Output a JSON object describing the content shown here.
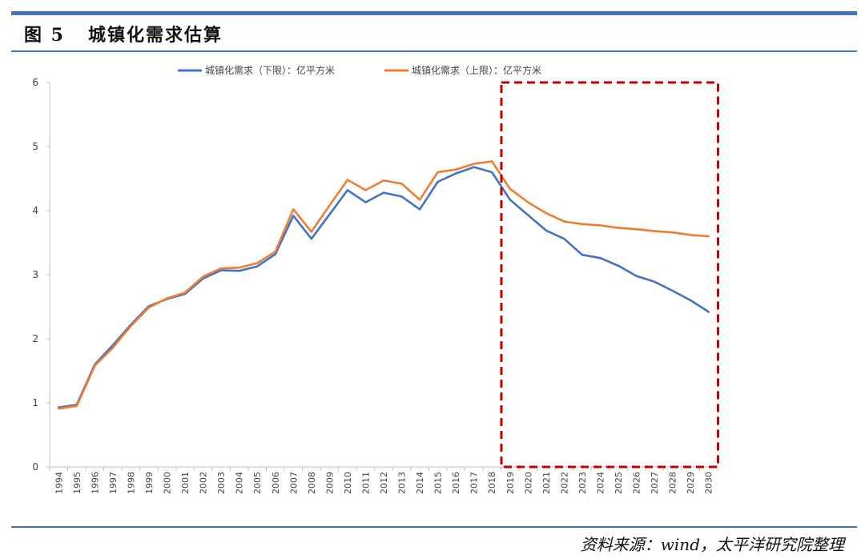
{
  "figure": {
    "label": "图 5",
    "title": "城镇化需求估算",
    "source": "资料来源：wind，太平洋研究院整理"
  },
  "colors": {
    "frame_rule": "#4472c4",
    "series_lower": "#4472c4",
    "series_upper": "#ed7d31",
    "highlight_box": "#c00000"
  },
  "chart_data": {
    "type": "line",
    "title": "",
    "xlabel": "",
    "ylabel": "",
    "ylim": [
      0,
      6
    ],
    "yticks": [
      0,
      1,
      2,
      3,
      4,
      5,
      6
    ],
    "grid": false,
    "legend_position": "top-center",
    "x": [
      "1994",
      "1995",
      "1996",
      "1997",
      "1998",
      "1999",
      "2000",
      "2001",
      "2002",
      "2003",
      "2004",
      "2005",
      "2006",
      "2007",
      "2008",
      "2009",
      "2010",
      "2011",
      "2012",
      "2013",
      "2014",
      "2015",
      "2016",
      "2017",
      "2018",
      "2019",
      "2020",
      "2021",
      "2022",
      "2023",
      "2024",
      "2025",
      "2026",
      "2027",
      "2028",
      "2029",
      "2030"
    ],
    "series": [
      {
        "name": "城镇化需求（下限）：亿平方米",
        "color": "#4472c4",
        "values": [
          0.93,
          0.97,
          1.6,
          1.9,
          2.22,
          2.51,
          2.62,
          2.7,
          2.94,
          3.07,
          3.06,
          3.13,
          3.32,
          3.92,
          3.56,
          3.94,
          4.32,
          4.13,
          4.28,
          4.22,
          4.02,
          4.45,
          4.58,
          4.68,
          4.6,
          4.17,
          3.93,
          3.69,
          3.56,
          3.31,
          3.26,
          3.14,
          2.98,
          2.89,
          2.75,
          2.6,
          2.42
        ]
      },
      {
        "name": "城镇化需求（上限）：亿平方米",
        "color": "#ed7d31",
        "values": [
          0.91,
          0.95,
          1.58,
          1.86,
          2.2,
          2.49,
          2.63,
          2.72,
          2.97,
          3.1,
          3.11,
          3.18,
          3.36,
          4.02,
          3.67,
          4.08,
          4.48,
          4.32,
          4.47,
          4.42,
          4.17,
          4.6,
          4.64,
          4.73,
          4.77,
          4.34,
          4.13,
          3.96,
          3.83,
          3.79,
          3.77,
          3.73,
          3.71,
          3.68,
          3.66,
          3.62,
          3.6
        ]
      }
    ],
    "highlight_region": {
      "x_start": "2019",
      "x_end": "2030",
      "style": "dashed-box"
    }
  }
}
